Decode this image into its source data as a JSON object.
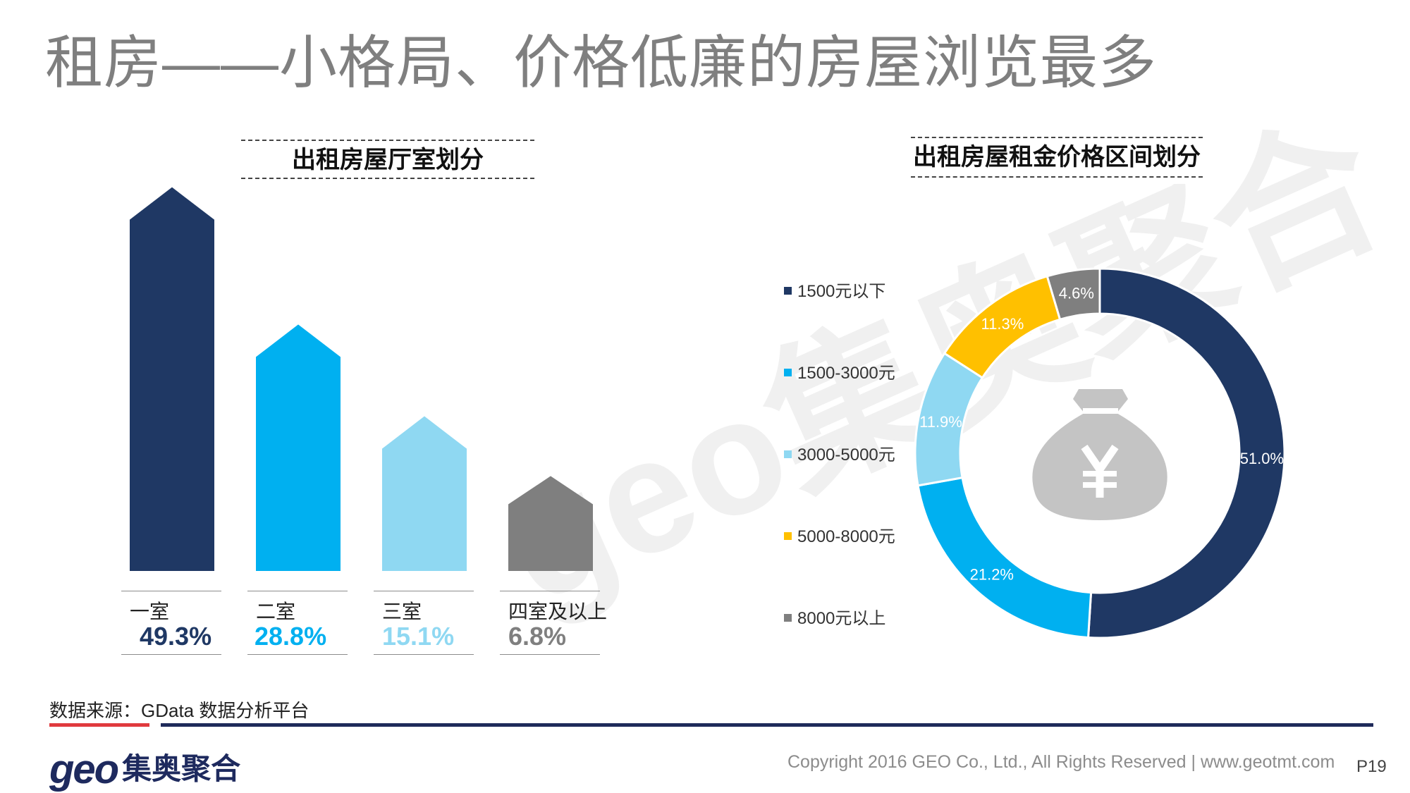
{
  "title": "租房——小格局、价格低廉的房屋浏览最多",
  "left_subtitle": "出租房屋厅室划分",
  "right_subtitle": "出租房屋租金价格区间划分",
  "watermark": "geo集奥聚合",
  "chart_data": [
    {
      "type": "bar",
      "title": "出租房屋厅室划分",
      "categories": [
        "一室",
        "二室",
        "三室",
        "四室及以上"
      ],
      "values": [
        49.3,
        28.8,
        15.1,
        6.8
      ],
      "value_labels": [
        "49.3%",
        "28.8%",
        "15.1%",
        "6.8%"
      ],
      "colors": [
        "#1f3864",
        "#00b0f0",
        "#8fd8f2",
        "#7f7f7f"
      ],
      "label_colors": [
        "#1f3864",
        "#00b0f0",
        "#8fd8f2",
        "#7f7f7f"
      ],
      "unit": "%"
    },
    {
      "type": "pie",
      "title": "出租房屋租金价格区间划分",
      "categories": [
        "1500元以下",
        "1500-3000元",
        "3000-5000元",
        "5000-8000元",
        "8000元以上"
      ],
      "values": [
        51.0,
        21.2,
        11.9,
        11.3,
        4.6
      ],
      "value_labels": [
        "51.0%",
        "21.2%",
        "11.9%",
        "11.3%",
        "4.6%"
      ],
      "colors": [
        "#1f3864",
        "#00b0f0",
        "#8fd8f2",
        "#ffc000",
        "#7f7f7f"
      ],
      "legend": "left",
      "center_icon": "money-bag-yuan-icon",
      "unit": "%"
    }
  ],
  "footer": {
    "source": "数据来源：GData  数据分析平台",
    "logo_latin": "geo",
    "logo_cn": "集奥聚合",
    "copyright": "Copyright 2016 GEO Co., Ltd., All Rights Reserved   |   www.geotmt.com",
    "page": "P19"
  }
}
